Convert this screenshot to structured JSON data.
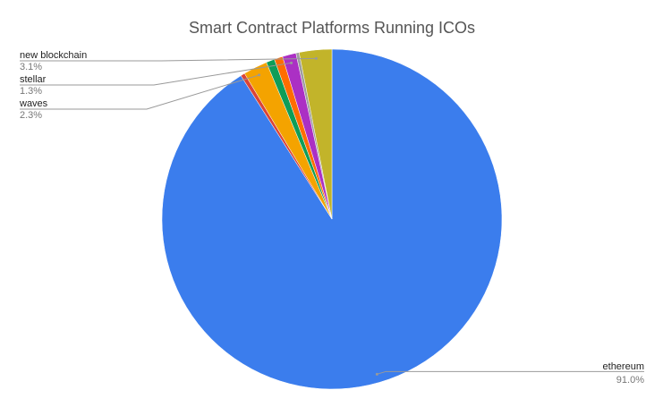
{
  "chart_data": {
    "type": "pie",
    "title": "Smart Contract Platforms Running ICOs",
    "categories": [
      "ethereum",
      null,
      "waves",
      null,
      null,
      "stellar",
      null,
      "new blockchain"
    ],
    "values": [
      91.0,
      0.4,
      2.3,
      0.8,
      0.8,
      1.3,
      0.3,
      3.1
    ],
    "value_labels": [
      "91.0%",
      null,
      "2.3%",
      null,
      null,
      "1.3%",
      null,
      "3.1%"
    ],
    "colors": [
      "#3b7ded",
      "#db4437",
      "#f4a300",
      "#0f9d58",
      "#ff6d00",
      "#ab30c4",
      "#9e9e9e",
      "#c2b42a"
    ]
  }
}
